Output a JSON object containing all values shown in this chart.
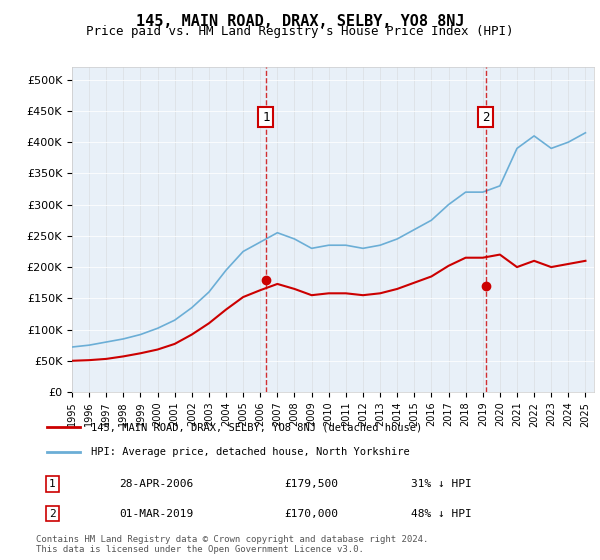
{
  "title": "145, MAIN ROAD, DRAX, SELBY, YO8 8NJ",
  "subtitle": "Price paid vs. HM Land Registry's House Price Index (HPI)",
  "hpi_label": "HPI: Average price, detached house, North Yorkshire",
  "property_label": "145, MAIN ROAD, DRAX, SELBY, YO8 8NJ (detached house)",
  "hpi_color": "#6baed6",
  "property_color": "#cc0000",
  "bg_color": "#e8f0f8",
  "annotation_box_color": "#cc0000",
  "sale1_date": "28-APR-2006",
  "sale1_price": 179500,
  "sale1_label": "31% ↓ HPI",
  "sale2_date": "01-MAR-2019",
  "sale2_price": 170000,
  "sale2_label": "48% ↓ HPI",
  "ylim": [
    0,
    520000
  ],
  "yticks": [
    0,
    50000,
    100000,
    150000,
    200000,
    250000,
    300000,
    350000,
    400000,
    450000,
    500000
  ],
  "footer": "Contains HM Land Registry data © Crown copyright and database right 2024.\nThis data is licensed under the Open Government Licence v3.0.",
  "hpi_years": [
    1995,
    1996,
    1997,
    1998,
    1999,
    2000,
    2001,
    2002,
    2003,
    2004,
    2005,
    2006,
    2007,
    2008,
    2009,
    2010,
    2011,
    2012,
    2013,
    2014,
    2015,
    2016,
    2017,
    2018,
    2019,
    2020,
    2021,
    2022,
    2023,
    2024,
    2025
  ],
  "hpi_values": [
    72000,
    75000,
    80000,
    85000,
    92000,
    102000,
    115000,
    135000,
    160000,
    195000,
    225000,
    240000,
    255000,
    245000,
    230000,
    235000,
    235000,
    230000,
    235000,
    245000,
    260000,
    275000,
    300000,
    320000,
    320000,
    330000,
    390000,
    410000,
    390000,
    400000,
    415000
  ],
  "property_years": [
    1995,
    1996,
    1997,
    1998,
    1999,
    2000,
    2001,
    2002,
    2003,
    2004,
    2005,
    2006,
    2007,
    2008,
    2009,
    2010,
    2011,
    2012,
    2013,
    2014,
    2015,
    2016,
    2017,
    2018,
    2019,
    2020,
    2021,
    2022,
    2023,
    2024,
    2025
  ],
  "property_values": [
    50000,
    51000,
    53000,
    57000,
    62000,
    68000,
    77000,
    92000,
    110000,
    132000,
    152000,
    163000,
    173000,
    165000,
    155000,
    158000,
    158000,
    155000,
    158000,
    165000,
    175000,
    185000,
    202000,
    215000,
    215000,
    220000,
    200000,
    210000,
    200000,
    205000,
    210000
  ],
  "sale1_x": 2006.33,
  "sale2_x": 2019.17,
  "xtick_years": [
    1995,
    1996,
    1997,
    1998,
    1999,
    2000,
    2001,
    2002,
    2003,
    2004,
    2005,
    2006,
    2007,
    2008,
    2009,
    2010,
    2011,
    2012,
    2013,
    2014,
    2015,
    2016,
    2017,
    2018,
    2019,
    2020,
    2021,
    2022,
    2023,
    2024,
    2025
  ]
}
